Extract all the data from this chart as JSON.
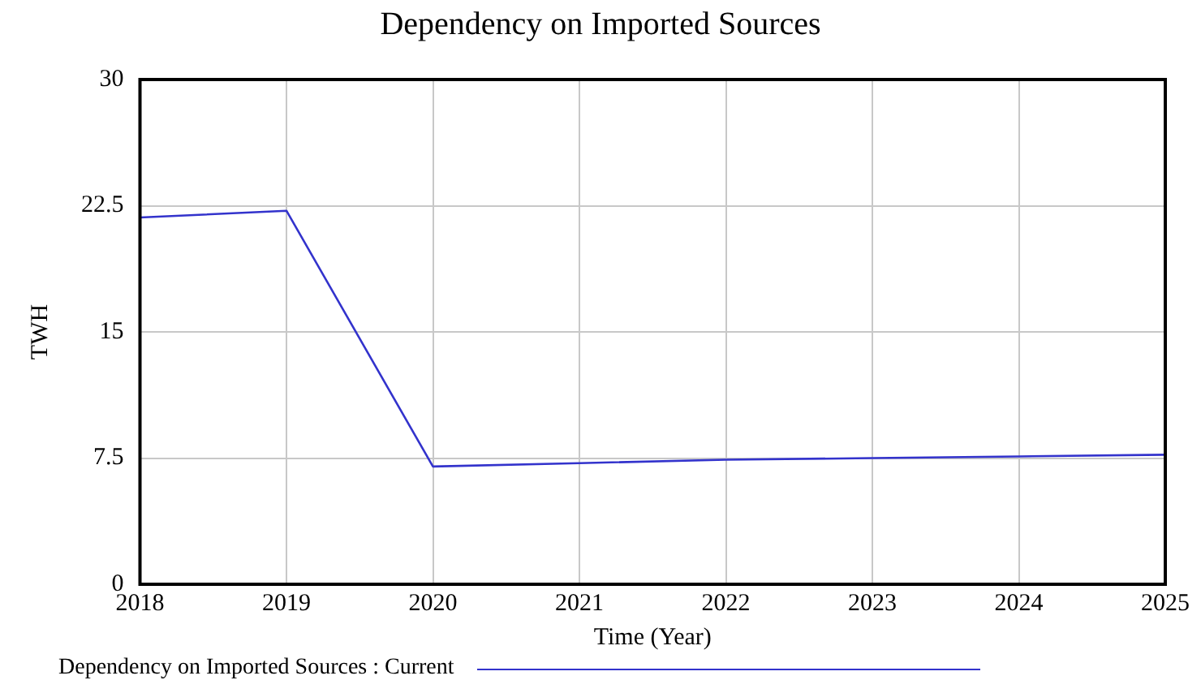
{
  "chart_data": {
    "type": "line",
    "title": "Dependency on Imported Sources",
    "xlabel": "Time (Year)",
    "ylabel": "TWH",
    "x": [
      2018,
      2019,
      2020,
      2021,
      2022,
      2023,
      2024,
      2025
    ],
    "series": [
      {
        "name": "Dependency on Imported Sources : Current",
        "color": "#3333cc",
        "values": [
          21.8,
          22.2,
          7.0,
          7.2,
          7.4,
          7.5,
          7.6,
          7.7
        ]
      }
    ],
    "xlim": [
      2018,
      2025
    ],
    "xticks": [
      2018,
      2019,
      2020,
      2021,
      2022,
      2023,
      2024,
      2025
    ],
    "ylim": [
      0,
      30
    ],
    "yticks": [
      0,
      7.5,
      15,
      22.5,
      30
    ],
    "grid": true,
    "legend": "bottom",
    "marker": "none",
    "line_style": "solid"
  }
}
